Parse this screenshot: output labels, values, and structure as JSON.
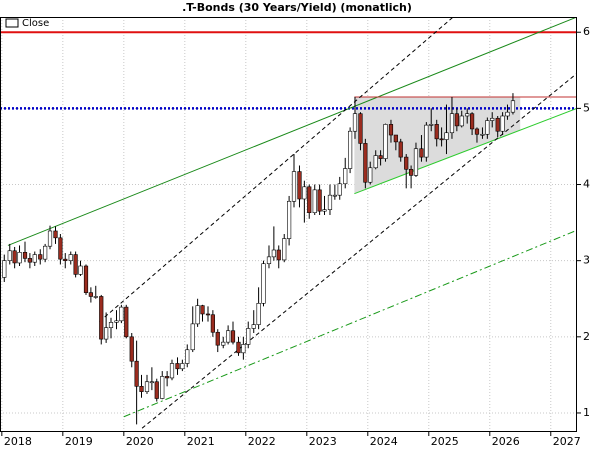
{
  "chart_data": {
    "type": "candlestick",
    "title": ".T-Bonds (30 Years/Yield) (monatlich)",
    "legend": "top-left",
    "grid": true,
    "xlim": [
      2017.97,
      2027.43
    ],
    "xticks": [
      2018,
      2019,
      2020,
      2021,
      2022,
      2023,
      2024,
      2025,
      2026,
      2027
    ],
    "ylim": [
      0.75,
      6.2
    ],
    "yticks": [
      1,
      2,
      3,
      4,
      5,
      6
    ],
    "up_color": "#ffffff",
    "down_color": "#9b2c1f",
    "series": [
      {
        "name": "Close",
        "x": [
          2018.04,
          2018.13,
          2018.21,
          2018.29,
          2018.38,
          2018.46,
          2018.54,
          2018.63,
          2018.71,
          2018.79,
          2018.88,
          2018.96,
          2019.04,
          2019.13,
          2019.21,
          2019.29,
          2019.38,
          2019.46,
          2019.54,
          2019.63,
          2019.71,
          2019.79,
          2019.88,
          2019.96,
          2020.04,
          2020.13,
          2020.21,
          2020.29,
          2020.38,
          2020.46,
          2020.54,
          2020.63,
          2020.71,
          2020.79,
          2020.88,
          2020.96,
          2021.04,
          2021.13,
          2021.21,
          2021.29,
          2021.38,
          2021.46,
          2021.54,
          2021.63,
          2021.71,
          2021.79,
          2021.88,
          2021.96,
          2022.04,
          2022.13,
          2022.21,
          2022.29,
          2022.38,
          2022.46,
          2022.54,
          2022.63,
          2022.71,
          2022.79,
          2022.88,
          2022.96,
          2023.04,
          2023.13,
          2023.21,
          2023.29,
          2023.38,
          2023.46,
          2023.54,
          2023.63,
          2023.71,
          2023.79,
          2023.88,
          2023.96,
          2024.04,
          2024.13,
          2024.21,
          2024.29,
          2024.38,
          2024.46,
          2024.54,
          2024.63,
          2024.71,
          2024.79,
          2024.88,
          2024.96,
          2025.04,
          2025.13,
          2025.21,
          2025.29,
          2025.38,
          2025.46,
          2025.54,
          2025.63,
          2025.71,
          2025.79,
          2025.88,
          2025.96,
          2026.04,
          2026.13,
          2026.21,
          2026.29,
          2026.38
        ],
        "open": [
          2.78,
          3.0,
          3.13,
          2.97,
          3.11,
          3.03,
          2.98,
          3.08,
          3.02,
          3.19,
          3.39,
          3.3,
          3.02,
          3.0,
          3.08,
          2.82,
          2.93,
          2.58,
          2.53,
          2.53,
          1.97,
          2.12,
          2.19,
          2.21,
          2.39,
          2.0,
          1.68,
          1.35,
          1.28,
          1.41,
          1.41,
          1.19,
          1.48,
          1.46,
          1.65,
          1.58,
          1.65,
          1.83,
          2.17,
          2.41,
          2.3,
          2.29,
          2.06,
          1.89,
          1.93,
          2.08,
          1.93,
          1.79,
          1.9,
          2.11,
          2.16,
          2.44,
          2.96,
          3.05,
          3.14,
          3.01,
          3.29,
          3.78,
          4.17,
          3.81,
          3.97,
          3.63,
          3.93,
          3.65,
          3.67,
          3.86,
          3.86,
          4.01,
          4.21,
          4.7,
          4.93,
          4.54,
          4.03,
          4.22,
          4.38,
          4.34,
          4.79,
          4.65,
          4.56,
          4.36,
          4.2,
          4.12,
          4.47,
          4.36,
          4.78,
          4.79,
          4.6,
          4.59,
          4.68,
          4.93,
          4.77,
          4.9,
          4.93,
          4.73,
          4.66,
          4.66,
          4.84,
          4.87,
          4.7,
          4.9,
          4.95
        ],
        "high": [
          3.08,
          3.22,
          3.18,
          3.2,
          3.25,
          3.1,
          3.12,
          3.15,
          3.22,
          3.46,
          3.45,
          3.35,
          3.1,
          3.12,
          3.12,
          3.0,
          2.95,
          2.65,
          2.67,
          2.55,
          2.32,
          2.25,
          2.35,
          2.42,
          2.42,
          2.05,
          1.95,
          1.5,
          1.5,
          1.6,
          1.45,
          1.55,
          1.55,
          1.7,
          1.73,
          1.7,
          1.9,
          2.4,
          2.5,
          2.42,
          2.4,
          2.35,
          2.1,
          2.0,
          2.15,
          2.2,
          2.0,
          2.0,
          2.2,
          2.35,
          2.65,
          3.0,
          3.2,
          3.45,
          3.2,
          3.35,
          3.85,
          4.4,
          4.25,
          4.05,
          4.0,
          4.0,
          4.0,
          3.85,
          4.0,
          4.0,
          4.1,
          4.35,
          4.75,
          5.15,
          4.95,
          4.6,
          4.3,
          4.45,
          4.45,
          4.8,
          4.85,
          4.65,
          4.6,
          4.4,
          4.25,
          4.55,
          4.65,
          4.82,
          5.0,
          4.85,
          4.75,
          5.05,
          5.15,
          5.0,
          4.97,
          5.0,
          4.95,
          4.75,
          4.75,
          4.88,
          4.95,
          4.9,
          4.95,
          5.05,
          5.2
        ],
        "low": [
          2.72,
          2.95,
          2.9,
          2.93,
          2.98,
          2.9,
          2.93,
          2.95,
          2.98,
          3.15,
          3.22,
          2.95,
          2.9,
          2.95,
          2.78,
          2.8,
          2.55,
          2.45,
          2.5,
          1.9,
          1.92,
          1.98,
          2.1,
          2.18,
          1.98,
          1.6,
          0.85,
          1.2,
          1.25,
          1.3,
          1.15,
          1.18,
          1.35,
          1.43,
          1.5,
          1.55,
          1.6,
          1.8,
          2.13,
          2.2,
          2.2,
          2.0,
          1.8,
          1.85,
          1.9,
          1.9,
          1.75,
          1.7,
          1.85,
          2.05,
          2.1,
          2.4,
          2.9,
          3.0,
          2.9,
          2.98,
          3.2,
          3.7,
          3.7,
          3.5,
          3.55,
          3.6,
          3.6,
          3.6,
          3.6,
          3.8,
          3.8,
          3.95,
          4.15,
          4.6,
          4.45,
          3.95,
          4.0,
          4.2,
          4.25,
          4.3,
          4.55,
          4.45,
          4.3,
          3.95,
          3.95,
          4.1,
          4.3,
          4.3,
          4.7,
          4.5,
          4.5,
          4.4,
          4.6,
          4.7,
          4.75,
          4.8,
          4.65,
          4.55,
          4.6,
          4.6,
          4.75,
          4.62,
          4.65,
          4.85,
          4.92
        ],
        "close": [
          3.0,
          3.13,
          2.97,
          3.11,
          3.03,
          2.98,
          3.08,
          3.02,
          3.19,
          3.39,
          3.3,
          3.02,
          3.0,
          3.08,
          2.82,
          2.93,
          2.58,
          2.53,
          2.53,
          1.97,
          2.12,
          2.19,
          2.21,
          2.39,
          2.0,
          1.68,
          1.35,
          1.28,
          1.41,
          1.41,
          1.19,
          1.48,
          1.46,
          1.65,
          1.58,
          1.65,
          1.83,
          2.17,
          2.41,
          2.3,
          2.29,
          2.06,
          1.89,
          1.93,
          2.08,
          1.93,
          1.79,
          1.9,
          2.11,
          2.16,
          2.44,
          2.96,
          3.05,
          3.14,
          3.01,
          3.29,
          3.78,
          4.17,
          3.81,
          3.97,
          3.63,
          3.93,
          3.65,
          3.67,
          3.86,
          3.86,
          4.01,
          4.21,
          4.7,
          4.93,
          4.54,
          4.03,
          4.22,
          4.38,
          4.34,
          4.79,
          4.65,
          4.56,
          4.36,
          4.2,
          4.12,
          4.47,
          4.36,
          4.78,
          4.79,
          4.6,
          4.59,
          4.68,
          4.93,
          4.77,
          4.9,
          4.93,
          4.73,
          4.66,
          4.66,
          4.84,
          4.87,
          4.7,
          4.9,
          4.95,
          5.1
        ]
      }
    ],
    "shapes": [
      {
        "x": [
          2023.78,
          2026.5,
          2026.5,
          2023.78
        ],
        "y": [
          5.15,
          5.15,
          4.71,
          3.88
        ],
        "color": "#dcdcdc"
      }
    ],
    "lines": [
      {
        "x": [
          2017.97,
          2027.43
        ],
        "y": [
          6,
          6
        ],
        "color": "#e01010",
        "width": 2,
        "dash": "none"
      },
      {
        "x": [
          2017.97,
          2027.43
        ],
        "y": [
          5,
          5
        ],
        "color": "#0000c8",
        "width": 2.5,
        "dash": "2,2"
      },
      {
        "x": [
          2018.1,
          2027.43
        ],
        "y": [
          3.2,
          6.2
        ],
        "color": "#1a8a1a",
        "width": 1,
        "dash": "none"
      },
      {
        "x": [
          2023.78,
          2027.43
        ],
        "y": [
          5.15,
          5.15
        ],
        "color": "#c03030",
        "width": 1,
        "dash": "none"
      },
      {
        "x": [
          2023.78,
          2027.43
        ],
        "y": [
          3.88,
          5.0
        ],
        "color": "#2ecc2e",
        "width": 1,
        "dash": "none"
      },
      {
        "x": [
          2019.6,
          2025.4
        ],
        "y": [
          2.2,
          6.2
        ],
        "color": "#000000",
        "width": 1,
        "dash": "4,3"
      },
      {
        "x": [
          2020.3,
          2027.43
        ],
        "y": [
          0.8,
          5.46
        ],
        "color": "#000000",
        "width": 1,
        "dash": "4,3"
      },
      {
        "x": [
          2020.0,
          2027.43
        ],
        "y": [
          0.95,
          3.4
        ],
        "color": "#1a9a1a",
        "width": 1,
        "dash": "7,3,2,3"
      }
    ]
  }
}
